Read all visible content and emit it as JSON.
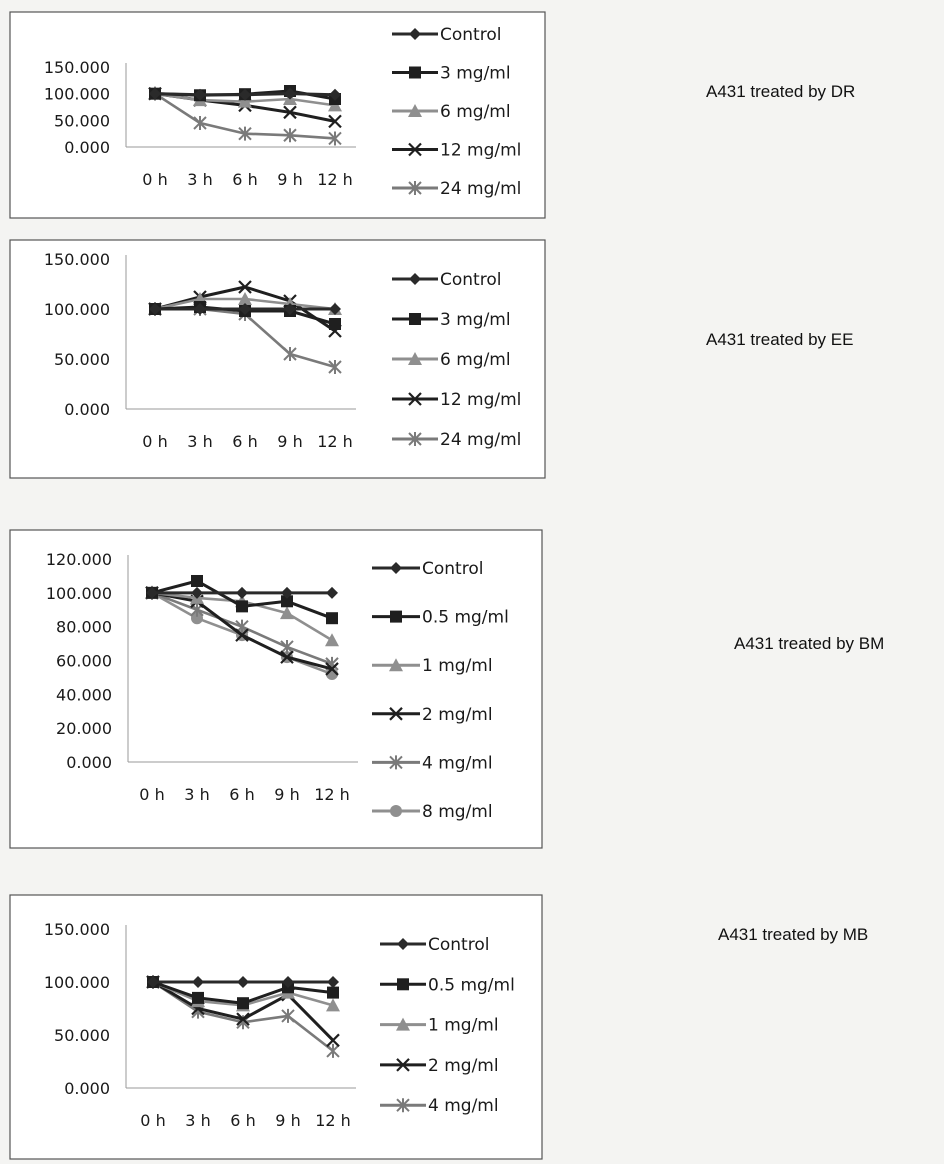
{
  "colors": {
    "black": "#1f1f1f",
    "darkgray": "#3a3a3a",
    "midgray": "#7a7a7a",
    "lightgray": "#8f8f8f",
    "lightgray2": "#a6a6a6",
    "frame": "#555555"
  },
  "chart_data": [
    {
      "type": "line",
      "side_label": "A431 treated by DR",
      "categories": [
        "0 h",
        "3 h",
        "6 h",
        "9 h",
        "12 h"
      ],
      "y_ticks": [
        "150.000",
        "100.000",
        "50.000",
        "0.000"
      ],
      "ylim": [
        0,
        150
      ],
      "legend_position": "right",
      "series": [
        {
          "name": "Control",
          "values": [
            100,
            98,
            98,
            100,
            98
          ],
          "marker": "diamond",
          "color": "#2a2a2a"
        },
        {
          "name": "3 mg/ml",
          "values": [
            100,
            97,
            99,
            105,
            90
          ],
          "marker": "square",
          "color": "#1f1f1f"
        },
        {
          "name": "6 mg/ml",
          "values": [
            100,
            88,
            85,
            90,
            78
          ],
          "marker": "triangle",
          "color": "#8f8f8f"
        },
        {
          "name": "12 mg/ml",
          "values": [
            100,
            88,
            78,
            65,
            48
          ],
          "marker": "x",
          "color": "#1f1f1f"
        },
        {
          "name": "24 mg/ml",
          "values": [
            100,
            45,
            25,
            22,
            16
          ],
          "marker": "star",
          "color": "#7a7a7a"
        }
      ]
    },
    {
      "type": "line",
      "side_label": "A431 treated by EE",
      "categories": [
        "0 h",
        "3 h",
        "6 h",
        "9 h",
        "12 h"
      ],
      "y_ticks": [
        "150.000",
        "100.000",
        "50.000",
        "0.000"
      ],
      "ylim": [
        0,
        150
      ],
      "legend_position": "right",
      "series": [
        {
          "name": "Control",
          "values": [
            100,
            100,
            100,
            100,
            100
          ],
          "marker": "diamond",
          "color": "#2a2a2a"
        },
        {
          "name": "3 mg/ml",
          "values": [
            100,
            102,
            98,
            98,
            85
          ],
          "marker": "square",
          "color": "#1f1f1f"
        },
        {
          "name": "6 mg/ml",
          "values": [
            100,
            110,
            110,
            105,
            100
          ],
          "marker": "triangle",
          "color": "#8f8f8f"
        },
        {
          "name": "12 mg/ml",
          "values": [
            100,
            112,
            122,
            108,
            78
          ],
          "marker": "x",
          "color": "#1f1f1f"
        },
        {
          "name": "24 mg/ml",
          "values": [
            100,
            100,
            95,
            55,
            42
          ],
          "marker": "star",
          "color": "#7a7a7a"
        }
      ]
    },
    {
      "type": "line",
      "side_label": "A431 treated by BM",
      "categories": [
        "0 h",
        "3 h",
        "6 h",
        "9 h",
        "12 h"
      ],
      "y_ticks": [
        "120.000",
        "100.000",
        "80.000",
        "60.000",
        "40.000",
        "20.000",
        "0.000"
      ],
      "ylim": [
        0,
        120
      ],
      "legend_position": "right",
      "series": [
        {
          "name": "Control",
          "values": [
            100,
            100,
            100,
            100,
            100
          ],
          "marker": "diamond",
          "color": "#2a2a2a"
        },
        {
          "name": "0.5 mg/ml",
          "values": [
            100,
            107,
            92,
            95,
            85
          ],
          "marker": "square",
          "color": "#1f1f1f"
        },
        {
          "name": "1 mg/ml",
          "values": [
            100,
            97,
            95,
            88,
            72
          ],
          "marker": "triangle",
          "color": "#8f8f8f"
        },
        {
          "name": "2 mg/ml",
          "values": [
            100,
            95,
            75,
            62,
            55
          ],
          "marker": "x",
          "color": "#1f1f1f"
        },
        {
          "name": "4 mg/ml",
          "values": [
            100,
            90,
            80,
            68,
            58
          ],
          "marker": "star",
          "color": "#7a7a7a"
        },
        {
          "name": "8 mg/ml",
          "values": [
            100,
            85,
            75,
            62,
            52
          ],
          "marker": "circle",
          "color": "#8f8f8f"
        }
      ]
    },
    {
      "type": "line",
      "side_label": "A431 treated by MB",
      "categories": [
        "0 h",
        "3 h",
        "6 h",
        "9 h",
        "12 h"
      ],
      "y_ticks": [
        "150.000",
        "100.000",
        "50.000",
        "0.000"
      ],
      "ylim": [
        0,
        150
      ],
      "legend_position": "right",
      "series": [
        {
          "name": "Control",
          "values": [
            100,
            100,
            100,
            100,
            100
          ],
          "marker": "diamond",
          "color": "#2a2a2a"
        },
        {
          "name": "0.5 mg/ml",
          "values": [
            100,
            85,
            80,
            95,
            90
          ],
          "marker": "square",
          "color": "#1f1f1f"
        },
        {
          "name": "1 mg/ml",
          "values": [
            100,
            82,
            78,
            90,
            78
          ],
          "marker": "triangle",
          "color": "#8f8f8f"
        },
        {
          "name": "2 mg/ml",
          "values": [
            100,
            75,
            65,
            88,
            45
          ],
          "marker": "x",
          "color": "#1f1f1f"
        },
        {
          "name": "4 mg/ml",
          "values": [
            100,
            72,
            62,
            68,
            35
          ],
          "marker": "star",
          "color": "#7a7a7a"
        }
      ]
    }
  ]
}
